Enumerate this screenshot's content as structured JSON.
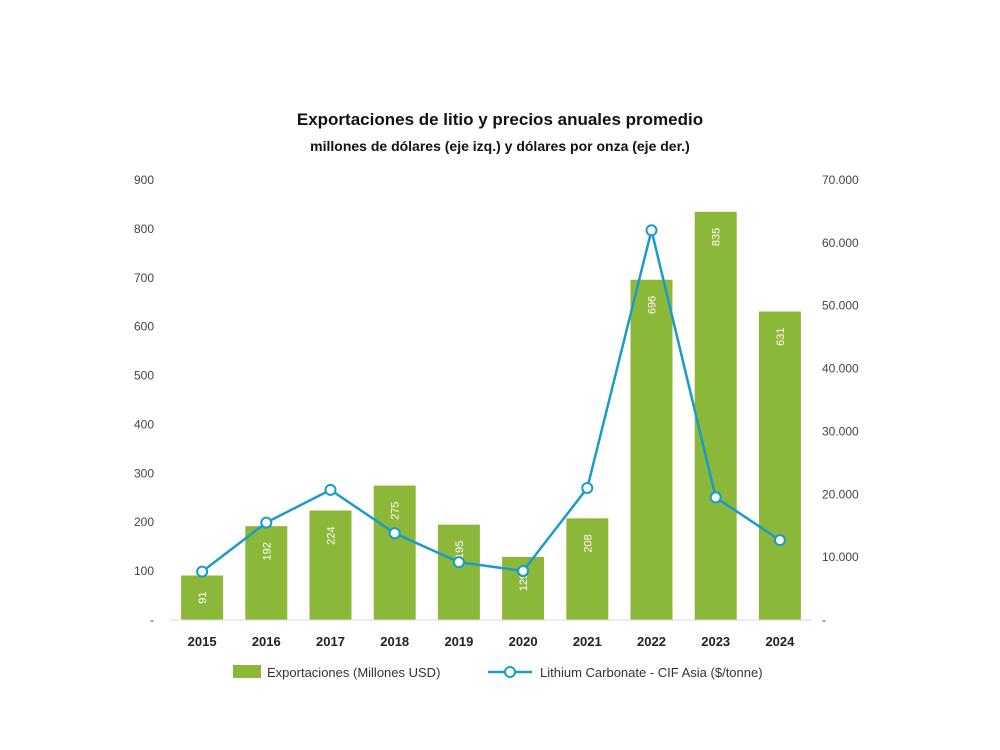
{
  "chart_data": {
    "type": "bar",
    "title": "Exportaciones de litio y precios anuales promedio",
    "subtitle": "millones de dólares (eje izq.) y dólares por onza (eje der.)",
    "categories": [
      "2015",
      "2016",
      "2017",
      "2018",
      "2019",
      "2020",
      "2021",
      "2022",
      "2023",
      "2024"
    ],
    "series": [
      {
        "name": "Exportaciones (Millones USD)",
        "type": "bar",
        "axis": "left",
        "color": "#8cb83a",
        "values": [
          91,
          192,
          224,
          275,
          195,
          129,
          208,
          696,
          835,
          631
        ],
        "labels": [
          "91",
          "192",
          "224",
          "275",
          "195",
          "129",
          "208",
          "696",
          "835",
          "631"
        ]
      },
      {
        "name": "Lithium Carbonate - CIF Asia ($/tonne)",
        "type": "line",
        "axis": "right",
        "color": "#1a9bc9",
        "values": [
          7700,
          15500,
          20700,
          13800,
          9200,
          7800,
          21000,
          62000,
          19500,
          12700
        ]
      }
    ],
    "y_left": {
      "min": 0,
      "max": 900,
      "ticks": [
        "-",
        "100",
        "200",
        "300",
        "400",
        "500",
        "600",
        "700",
        "800",
        "900"
      ]
    },
    "y_right": {
      "min": 0,
      "max": 70000,
      "ticks": [
        "-",
        "10.000",
        "20.000",
        "30.000",
        "40.000",
        "50.000",
        "60.000",
        "70.000"
      ]
    },
    "legend_position": "bottom",
    "grid": false
  }
}
